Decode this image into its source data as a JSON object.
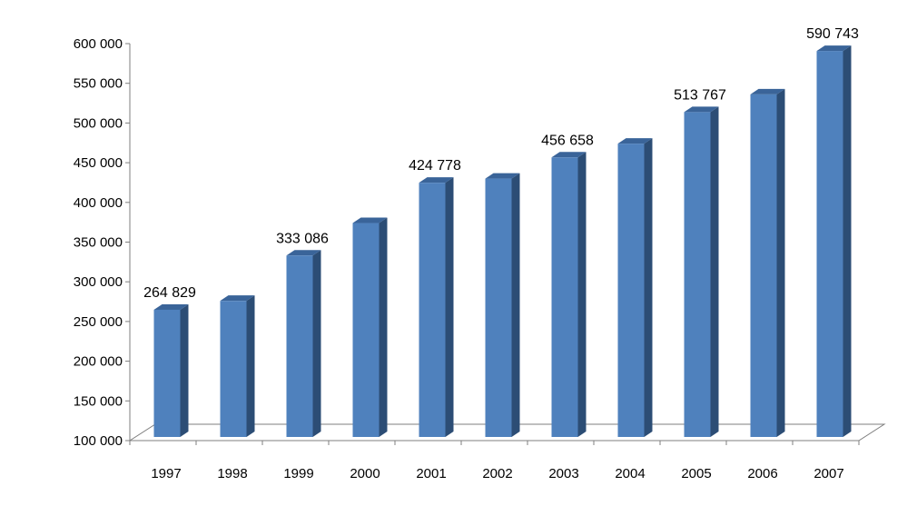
{
  "chart_data": {
    "type": "bar",
    "title": "",
    "xlabel": "",
    "ylabel": "",
    "categories": [
      "1997",
      "1998",
      "1999",
      "2000",
      "2001",
      "2002",
      "2003",
      "2004",
      "2005",
      "2006",
      "2007"
    ],
    "values": [
      264829,
      276000,
      333086,
      374000,
      424778,
      430000,
      456658,
      474000,
      513767,
      536000,
      590743
    ],
    "data_labels": [
      "264 829",
      "",
      "333 086",
      "",
      "424 778",
      "",
      "456 658",
      "",
      "513 767",
      "",
      "590 743"
    ],
    "ylim": [
      100000,
      600000
    ],
    "yticks": [
      100000,
      150000,
      200000,
      250000,
      300000,
      350000,
      400000,
      450000,
      500000,
      550000,
      600000
    ],
    "ytick_labels": [
      "100 000",
      "150 000",
      "200 000",
      "250 000",
      "300 000",
      "350 000",
      "400 000",
      "450 000",
      "500 000",
      "550 000",
      "600 000"
    ],
    "grid": false,
    "legend": "none",
    "style": "3d-column",
    "colors": {
      "bar_front": "#4F81BD",
      "bar_side": "#2C4D75",
      "bar_top": "#3A6499",
      "axis": "#7F7F7F",
      "floor": "#FFFFFF"
    }
  }
}
